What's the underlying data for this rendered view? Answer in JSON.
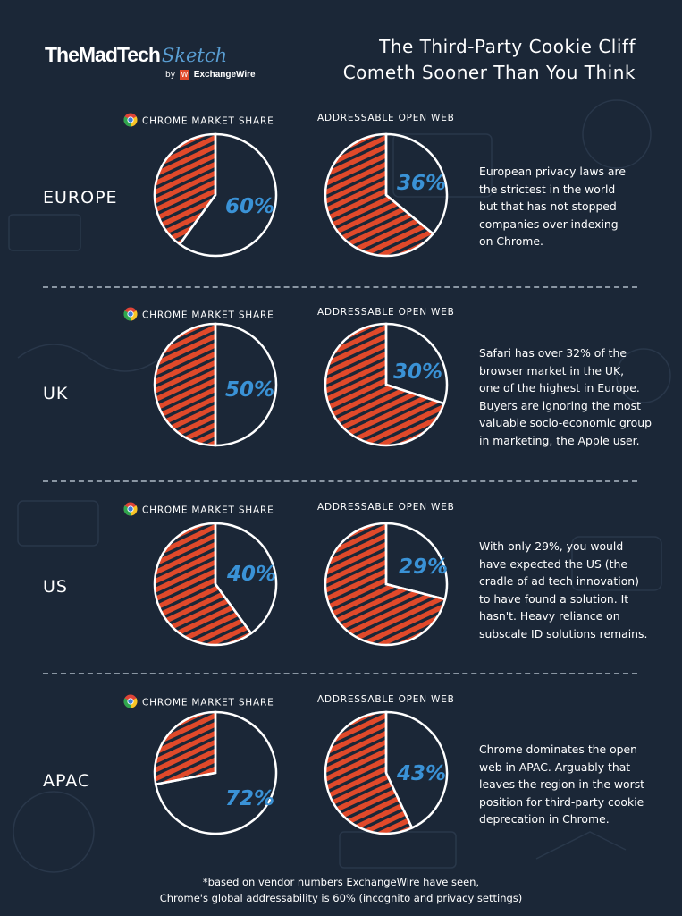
{
  "logo": {
    "main": "TheMadTech",
    "script": "Sketch",
    "by": "by",
    "badge": "W",
    "brand": "ExchangeWire"
  },
  "title_lines": [
    "The Third-Party Cookie Cliff",
    "Cometh Sooner Than You Think"
  ],
  "headers": {
    "chrome": "CHROME MARKET SHARE",
    "open_web": "ADDRESSABLE OPEN WEB"
  },
  "colors": {
    "background": "#1b2737",
    "hatch_orange": "#e0492a",
    "percent_blue": "#3a92d6",
    "outline": "#ffffff"
  },
  "chart_data": [
    {
      "type": "pie",
      "region": "EUROPE",
      "chrome_market_share": 60,
      "chrome_label": "60%",
      "addressable_open_web": 36,
      "open_label": "36%"
    },
    {
      "type": "pie",
      "region": "UK",
      "chrome_market_share": 50,
      "chrome_label": "50%",
      "addressable_open_web": 30,
      "open_label": "30%"
    },
    {
      "type": "pie",
      "region": "US",
      "chrome_market_share": 40,
      "chrome_label": "40%",
      "addressable_open_web": 29,
      "open_label": "29%"
    },
    {
      "type": "pie",
      "region": "APAC",
      "chrome_market_share": 72,
      "chrome_label": "72%",
      "addressable_open_web": 43,
      "open_label": "43%"
    }
  ],
  "notes": [
    [
      "European privacy laws are",
      "the strictest in the world",
      "but that has not stopped",
      "companies over-indexing",
      "on Chrome."
    ],
    [
      "Safari has over 32% of the",
      "browser market in the UK,",
      "one of the highest in Europe.",
      "Buyers are ignoring the most",
      "valuable socio-economic group",
      "in marketing, the Apple user."
    ],
    [
      "With only 29%, you would",
      "have expected the US (the",
      "cradle of ad tech innovation)",
      "to have found a solution. It",
      "hasn't. Heavy reliance on",
      "subscale ID solutions remains."
    ],
    [
      "Chrome dominates the open",
      "web in APAC. Arguably that",
      "leaves the region in the worst",
      "position for third-party cookie",
      "deprecation in Chrome."
    ]
  ],
  "footnote_lines": [
    "*based on vendor numbers ExchangeWire have seen,",
    "Chrome's global addressability is 60% (incognito and privacy settings)"
  ]
}
